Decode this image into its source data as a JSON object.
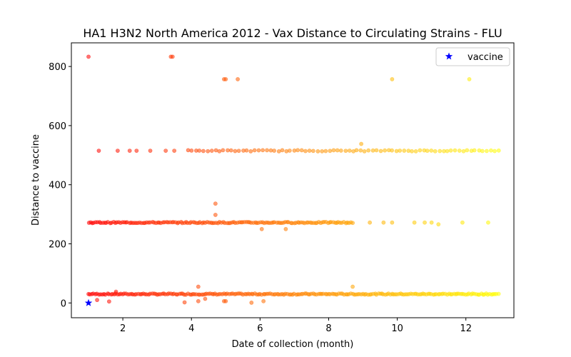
{
  "chart_data": {
    "type": "scatter",
    "title": "HA1 H3N2 North America 2012 - Vax Distance to Circulating Strains - FLU",
    "xlabel": "Date of collection (month)",
    "ylabel": "Distance to vaccine",
    "xlim": [
      0.5,
      13.4
    ],
    "ylim": [
      -50,
      880
    ],
    "x_ticks": [
      2,
      4,
      6,
      8,
      10,
      12
    ],
    "y_ticks": [
      0,
      200,
      400,
      600,
      800
    ],
    "grid": false,
    "legend_position": "top-right",
    "color_scale": {
      "start": "#ff0000",
      "mid": "#ff8000",
      "end": "#ffff00",
      "x_start": 1,
      "x_end": 13
    },
    "series": [
      {
        "name": "vaccine",
        "marker": "star",
        "color": "#0000ff",
        "points": [
          [
            1.0,
            0
          ]
        ]
      },
      {
        "marker": "circle",
        "opacity": 0.55,
        "bands": [
          {
            "y": 30,
            "x_start": 1.0,
            "x_end": 12.95,
            "count": 240
          },
          {
            "y": 272,
            "x_start": 1.0,
            "x_end": 8.7,
            "count": 150
          },
          {
            "y": 515,
            "x_start": 3.9,
            "x_end": 12.95,
            "count": 80
          }
        ],
        "points": [
          [
            1.0,
            833
          ],
          [
            3.4,
            833
          ],
          [
            3.45,
            833
          ],
          [
            4.95,
            757
          ],
          [
            5.0,
            757
          ],
          [
            5.35,
            757
          ],
          [
            9.85,
            757
          ],
          [
            12.1,
            757
          ],
          [
            1.3,
            515
          ],
          [
            1.85,
            515
          ],
          [
            2.2,
            515
          ],
          [
            2.4,
            515
          ],
          [
            2.8,
            515
          ],
          [
            3.25,
            515
          ],
          [
            3.5,
            515
          ],
          [
            8.95,
            538
          ],
          [
            4.7,
            336
          ],
          [
            4.7,
            298
          ],
          [
            9.2,
            272
          ],
          [
            9.6,
            272
          ],
          [
            9.85,
            272
          ],
          [
            10.5,
            272
          ],
          [
            10.8,
            272
          ],
          [
            11.0,
            272
          ],
          [
            11.2,
            266
          ],
          [
            11.9,
            272
          ],
          [
            12.65,
            272
          ],
          [
            6.05,
            250
          ],
          [
            6.75,
            250
          ],
          [
            1.25,
            10
          ],
          [
            1.6,
            5
          ],
          [
            3.8,
            2
          ],
          [
            4.2,
            6
          ],
          [
            4.4,
            14
          ],
          [
            4.95,
            6
          ],
          [
            5.0,
            6
          ],
          [
            5.75,
            1
          ],
          [
            6.1,
            6
          ],
          [
            4.2,
            55
          ],
          [
            8.7,
            55
          ],
          [
            1.8,
            38
          ]
        ]
      }
    ]
  }
}
